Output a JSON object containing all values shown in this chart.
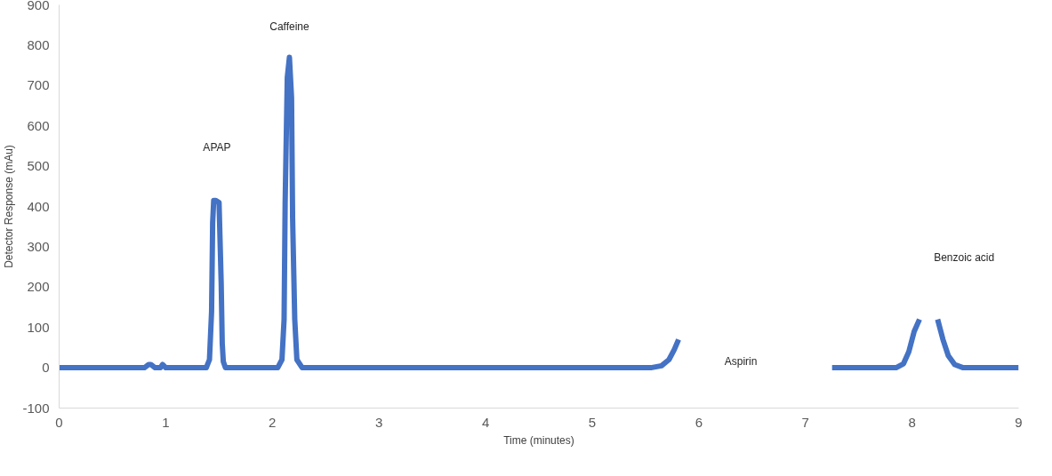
{
  "chart_data": {
    "type": "line",
    "xlabel": "Time (minutes)",
    "ylabel": "Detector Response (mAu)",
    "xlim": [
      0,
      9
    ],
    "xticks": [
      0,
      1,
      2,
      3,
      4,
      5,
      6,
      7,
      8,
      9
    ],
    "ylim": [
      -100,
      900
    ],
    "yticks": [
      -100,
      0,
      100,
      200,
      300,
      400,
      500,
      600,
      700,
      800,
      900
    ],
    "grid": false,
    "marker": "none",
    "line_style": "solid",
    "x": [
      0,
      0.8,
      0.84,
      0.86,
      0.9,
      0.95,
      0.97,
      1.0,
      1.38,
      1.41,
      1.43,
      1.44,
      1.45,
      1.47,
      1.5,
      1.52,
      1.53,
      1.54,
      1.56,
      1.6,
      2.05,
      2.09,
      2.11,
      2.12,
      2.14,
      2.16,
      2.18,
      2.19,
      2.21,
      2.23,
      2.28,
      5.55,
      5.65,
      5.72,
      5.77,
      5.81,
      5.9,
      7.25,
      7.85,
      7.92,
      7.97,
      8.02,
      8.07,
      8.15,
      8.24,
      8.29,
      8.34,
      8.4,
      8.48,
      9.0
    ],
    "series": [
      {
        "color": "#4472c4",
        "values": [
          0,
          0,
          8,
          8,
          0,
          0,
          8,
          0,
          0,
          20,
          140,
          360,
          415,
          415,
          410,
          210,
          60,
          15,
          0,
          0,
          0,
          20,
          120,
          410,
          720,
          770,
          670,
          370,
          120,
          20,
          0,
          0,
          5,
          20,
          45,
          70,
          null,
          0,
          0,
          10,
          40,
          90,
          120,
          null,
          120,
          70,
          30,
          8,
          0,
          0
        ]
      }
    ],
    "annotations": [
      "APAP",
      "Caffeine",
      "Aspirin",
      "Benzoic acid"
    ]
  }
}
